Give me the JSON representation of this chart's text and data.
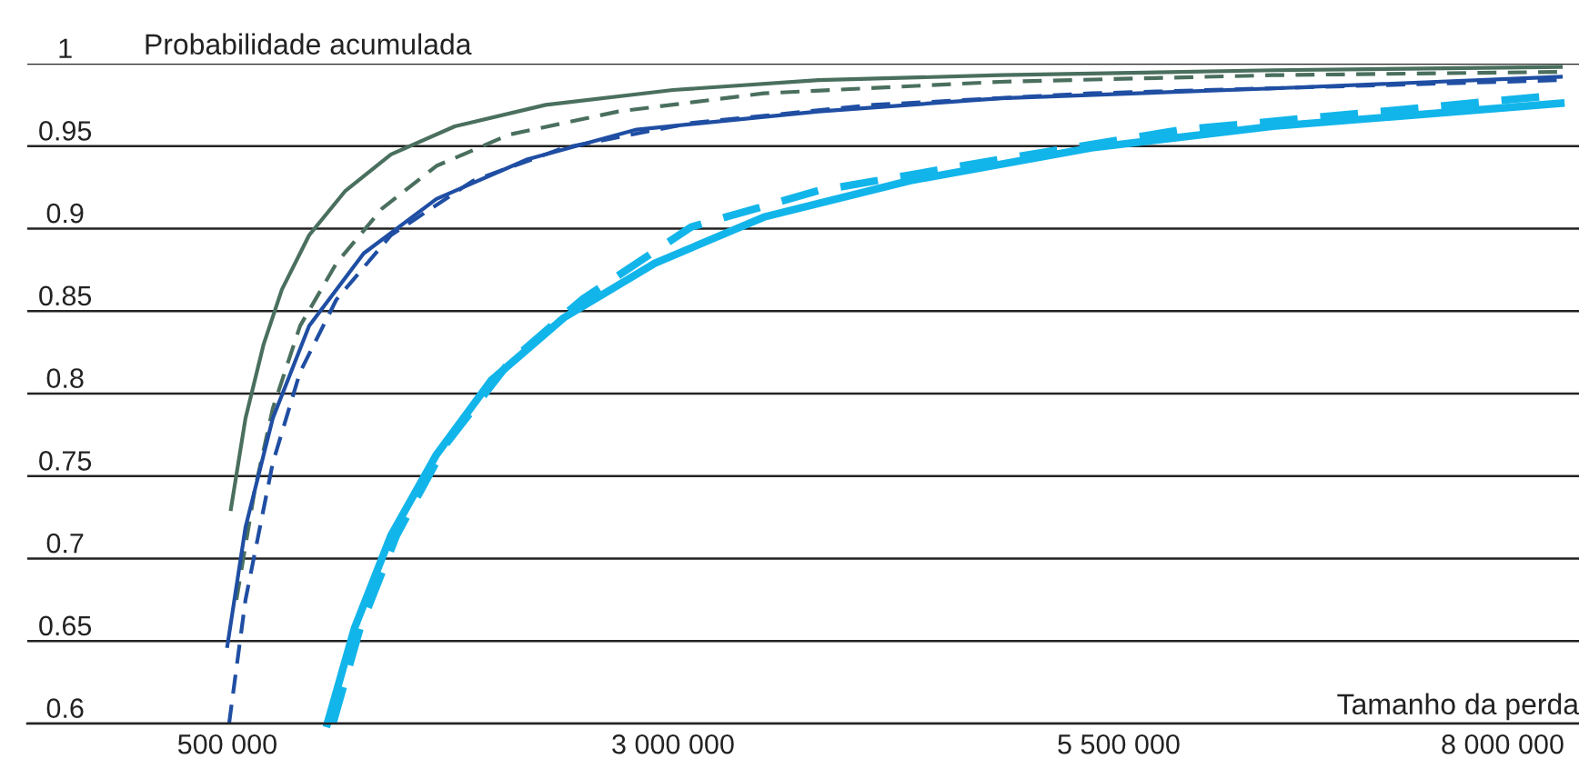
{
  "chart_data": {
    "type": "line",
    "xlabel": "Tamanho da perda",
    "ylabel": "Probabilidade acumulada",
    "xlim": [
      -622000,
      8082000
    ],
    "ylim": [
      0.6,
      1.0
    ],
    "xticks": [
      {
        "value": 500000,
        "label": "500 000"
      },
      {
        "value": 3000000,
        "label": "3 000 000"
      },
      {
        "value": 5500000,
        "label": "5 500 000"
      },
      {
        "value": 8000000,
        "label": "8 000 000"
      }
    ],
    "yticks": [
      0.6,
      0.65,
      0.7,
      0.75,
      0.8,
      0.85,
      0.9,
      0.95,
      1
    ],
    "grid": "y",
    "series": [
      {
        "color": "#4a6f5e",
        "line_style": "solid",
        "x": [
          520000,
          602000,
          704000,
          806000,
          959000,
          1163000,
          1418000,
          1776000,
          2286000,
          3000000,
          3816000,
          4837000,
          6367000,
          7980000
        ],
        "values": [
          0.73,
          0.785,
          0.83,
          0.863,
          0.896,
          0.923,
          0.945,
          0.962,
          0.975,
          0.984,
          0.99,
          0.993,
          0.996,
          0.998
        ]
      },
      {
        "color": "#4a6f5e",
        "line_style": "dashed",
        "x": [
          551000,
          653000,
          755000,
          908000,
          1112000,
          1367000,
          1673000,
          2082000,
          2694000,
          3510000,
          4837000,
          6367000,
          7980000
        ],
        "values": [
          0.675,
          0.741,
          0.791,
          0.841,
          0.879,
          0.912,
          0.938,
          0.957,
          0.971,
          0.982,
          0.989,
          0.993,
          0.995
        ]
      },
      {
        "color": "#1f4ea3",
        "line_style": "solid",
        "x": [
          500000,
          602000,
          755000,
          959000,
          1265000,
          1673000,
          2184000,
          2796000,
          3816000,
          4837000,
          6367000,
          7980000
        ],
        "values": [
          0.647,
          0.719,
          0.785,
          0.841,
          0.885,
          0.918,
          0.942,
          0.96,
          0.971,
          0.979,
          0.985,
          0.992
        ]
      },
      {
        "color": "#1f4ea3",
        "line_style": "dashed",
        "x": [
          510000,
          602000,
          755000,
          908000,
          1112000,
          1418000,
          1878000,
          2388000,
          3102000,
          4122000,
          5347000,
          7980000
        ],
        "values": [
          0.6,
          0.675,
          0.758,
          0.813,
          0.857,
          0.896,
          0.929,
          0.949,
          0.964,
          0.975,
          0.982,
          0.99
        ]
      },
      {
        "color": "#12b5ea",
        "line_style": "solid",
        "x": [
          1061000,
          1214000,
          1418000,
          1673000,
          1980000,
          2388000,
          2898000,
          3510000,
          4327000,
          5347000,
          6367000,
          7980000
        ],
        "values": [
          0.6,
          0.658,
          0.714,
          0.763,
          0.808,
          0.846,
          0.879,
          0.907,
          0.929,
          0.949,
          0.962,
          0.976
        ]
      },
      {
        "color": "#12b5ea",
        "line_style": "dashed",
        "x": [
          1092000,
          1245000,
          1449000,
          1724000,
          2082000,
          2490000,
          3102000,
          3816000,
          4837000,
          5857000,
          7980000
        ],
        "values": [
          0.6,
          0.658,
          0.714,
          0.769,
          0.819,
          0.857,
          0.901,
          0.923,
          0.942,
          0.96,
          0.981
        ]
      }
    ]
  }
}
